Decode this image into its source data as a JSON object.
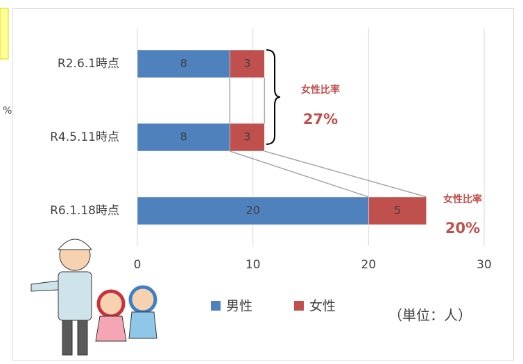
{
  "chart_data": {
    "type": "stacked-barh",
    "categories": [
      "R2.6.1時点",
      "R4.5.11時点",
      "R6.1.18時点"
    ],
    "series": [
      {
        "name": "男性",
        "color": "#4f81bd",
        "values": [
          8,
          8,
          20
        ]
      },
      {
        "name": "女性",
        "color": "#c0504d",
        "values": [
          3,
          3,
          5
        ]
      }
    ],
    "xlim": [
      0,
      30
    ],
    "xticks": [
      0,
      10,
      20,
      30
    ],
    "grid": true,
    "legend": "bottom",
    "annotations": [
      {
        "label": "女性比率",
        "value": "27%"
      },
      {
        "label": "女性比率",
        "value": "20%"
      }
    ],
    "unit_note": "（単位：人）",
    "side_fragment": "%"
  }
}
